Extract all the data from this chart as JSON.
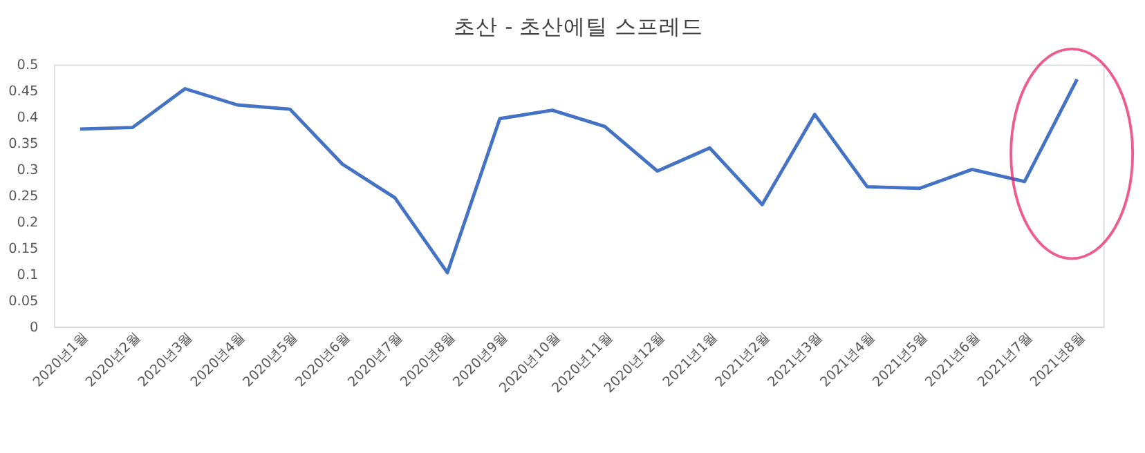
{
  "chart_data": {
    "type": "line",
    "title": "초산 - 초산에틸 스프레드",
    "categories": [
      "2020년1월",
      "2020년2월",
      "2020년3월",
      "2020년4월",
      "2020년5월",
      "2020년6월",
      "2020년7월",
      "2020년8월",
      "2020년9월",
      "2020년10월",
      "2020년11월",
      "2020년12월",
      "2021년1월",
      "2021년2월",
      "2021년3월",
      "2021년4월",
      "2021년5월",
      "2021년6월",
      "2021년7월",
      "2021년8월"
    ],
    "series": [
      {
        "color": "#4472c4",
        "values": [
          0.377,
          0.38,
          0.454,
          0.423,
          0.415,
          0.31,
          0.246,
          0.103,
          0.397,
          0.413,
          0.382,
          0.297,
          0.341,
          0.233,
          0.405,
          0.267,
          0.264,
          0.3,
          0.277,
          0.472
        ]
      }
    ],
    "ylim": [
      0,
      0.5
    ],
    "yticks": [
      0,
      0.05,
      0.1,
      0.15,
      0.2,
      0.25,
      0.3,
      0.35,
      0.4,
      0.45,
      0.5
    ],
    "grid": false,
    "marker": "none",
    "line_style": "solid"
  }
}
